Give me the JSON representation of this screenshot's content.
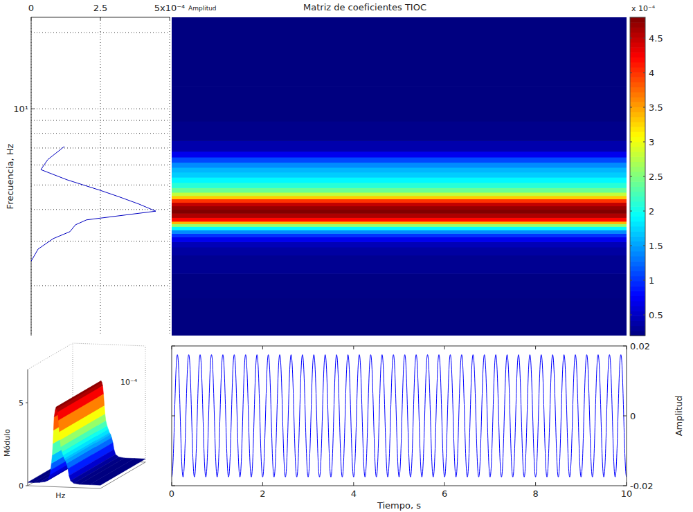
{
  "chart_data": {
    "type": "heatmap",
    "title": "Matriz de coeficientes TIOC",
    "y_label": "Frecuencia, Hz",
    "log": "y",
    "grid": true,
    "ylim": [
      1.27,
      23
    ],
    "yticks": [
      {
        "value": 10,
        "label": "10¹"
      }
    ],
    "yminor_ticks": [
      2,
      3,
      4,
      5,
      6,
      7,
      8,
      9,
      20
    ],
    "xlim": [
      0,
      10
    ],
    "heatmap": {
      "freq": [
        1.27,
        1.6,
        2.0,
        2.5,
        2.79,
        2.9,
        3.07,
        3.17,
        3.27,
        3.38,
        3.48,
        3.55,
        3.64,
        3.8,
        3.94,
        4.07,
        4.2,
        4.34,
        4.48,
        4.6,
        4.76,
        5.0,
        5.24,
        5.5,
        5.75,
        6.0,
        6.3,
        6.6,
        7.0,
        8.0,
        10,
        15,
        23
      ],
      "z": [
        0.2,
        0.2,
        0.22,
        0.28,
        0.35,
        0.45,
        0.7,
        1.0,
        1.4,
        1.9,
        2.6,
        3.4,
        4.2,
        4.6,
        4.8,
        4.7,
        4.5,
        4.0,
        3.3,
        2.8,
        2.4,
        2.1,
        1.9,
        1.7,
        1.6,
        1.4,
        1.1,
        0.7,
        0.4,
        0.25,
        0.2,
        0.2,
        0.2
      ]
    },
    "colorbar": {
      "clim": [
        0.2,
        4.8
      ],
      "ticks": [
        0.5,
        1,
        1.5,
        2,
        2.5,
        3,
        3.5,
        4,
        4.5
      ],
      "label": "x 10⁻⁴"
    },
    "spectrum": {
      "x_label": "Amplitud",
      "xlim": [
        0,
        5
      ],
      "xticks": [
        0,
        2.5,
        {
          "value": 5,
          "label": "5x10⁻⁴"
        }
      ],
      "color": "#0000c0",
      "freq": [
        2.5,
        2.79,
        3.07,
        3.27,
        3.48,
        3.64,
        3.94,
        4.2,
        4.48,
        4.76,
        5.24,
        5.75,
        6.3,
        7.1
      ],
      "values": [
        0,
        0.25,
        0.8,
        1.4,
        1.6,
        2.0,
        4.5,
        3.9,
        3.2,
        2.5,
        1.3,
        0.35,
        0.6,
        1.2
      ]
    },
    "signal": {
      "type": "line",
      "x_label": "Tiempo, s",
      "y_label": "Amplitud",
      "color": "#0000ff",
      "xlim": [
        0,
        10
      ],
      "xticks": [
        0,
        2,
        4,
        6,
        8,
        10
      ],
      "ylim": [
        -0.02,
        0.02
      ],
      "yticks": [
        -0.02,
        0,
        0.02
      ],
      "x": [
        0,
        0.125,
        0.25,
        0.375,
        0.5,
        0.625,
        0.75,
        0.875,
        1,
        1.125,
        1.25,
        1.375,
        1.5,
        1.625,
        1.75,
        1.875,
        2,
        2.125,
        2.25,
        2.375,
        2.5,
        2.625,
        2.75,
        2.875,
        3,
        3.125,
        3.25,
        3.375,
        3.5,
        3.625,
        3.75,
        3.875,
        4,
        4.125,
        4.25,
        4.375,
        4.5,
        4.625,
        4.75,
        4.875,
        5,
        5.125,
        5.25,
        5.375,
        5.5,
        5.625,
        5.75,
        5.875,
        6,
        6.125,
        6.25,
        6.375,
        6.5,
        6.625,
        6.75,
        6.875,
        7,
        7.125,
        7.25,
        7.375,
        7.5,
        7.625,
        7.75,
        7.875,
        8,
        8.125,
        8.25,
        8.375,
        8.5,
        8.625,
        8.75,
        8.875,
        9,
        9.125,
        9.25,
        9.375,
        9.5,
        9.625,
        9.75,
        9.875,
        10
      ],
      "values": [
        -0.0175,
        0.0175,
        -0.0175,
        0.0175,
        -0.0175,
        0.0175,
        -0.0175,
        0.0175,
        -0.0175,
        0.0175,
        -0.0175,
        0.0175,
        -0.0175,
        0.0175,
        -0.0175,
        0.0175,
        -0.0175,
        0.0175,
        -0.0175,
        0.0175,
        -0.0175,
        0.0175,
        -0.0175,
        0.0175,
        -0.0175,
        0.0175,
        -0.0175,
        0.0175,
        -0.0175,
        0.0175,
        -0.0175,
        0.0175,
        -0.0175,
        0.0175,
        -0.0175,
        0.0175,
        -0.0175,
        0.0175,
        -0.0175,
        0.0175,
        -0.0175,
        0.0175,
        -0.0175,
        0.0175,
        -0.0175,
        0.0175,
        -0.0175,
        0.0175,
        -0.0175,
        0.0175,
        -0.0175,
        0.0175,
        -0.0175,
        0.0175,
        -0.0175,
        0.0175,
        -0.0175,
        0.0175,
        -0.0175,
        0.0175,
        -0.0175,
        0.0175,
        -0.0175,
        0.0175,
        -0.0175,
        0.0175,
        -0.0175,
        0.0175,
        -0.0175,
        0.0175,
        -0.0175,
        0.0175,
        -0.0175,
        0.0175,
        -0.0175,
        0.0175,
        -0.0175,
        0.0175,
        -0.0175,
        0.0175,
        -0.0175
      ]
    },
    "surface": {
      "z_label": "Módulo",
      "x_label": "Hz",
      "zlim": [
        0,
        7
      ],
      "zticks": [
        0,
        5
      ],
      "z_multiplier": "10⁻⁴"
    }
  }
}
